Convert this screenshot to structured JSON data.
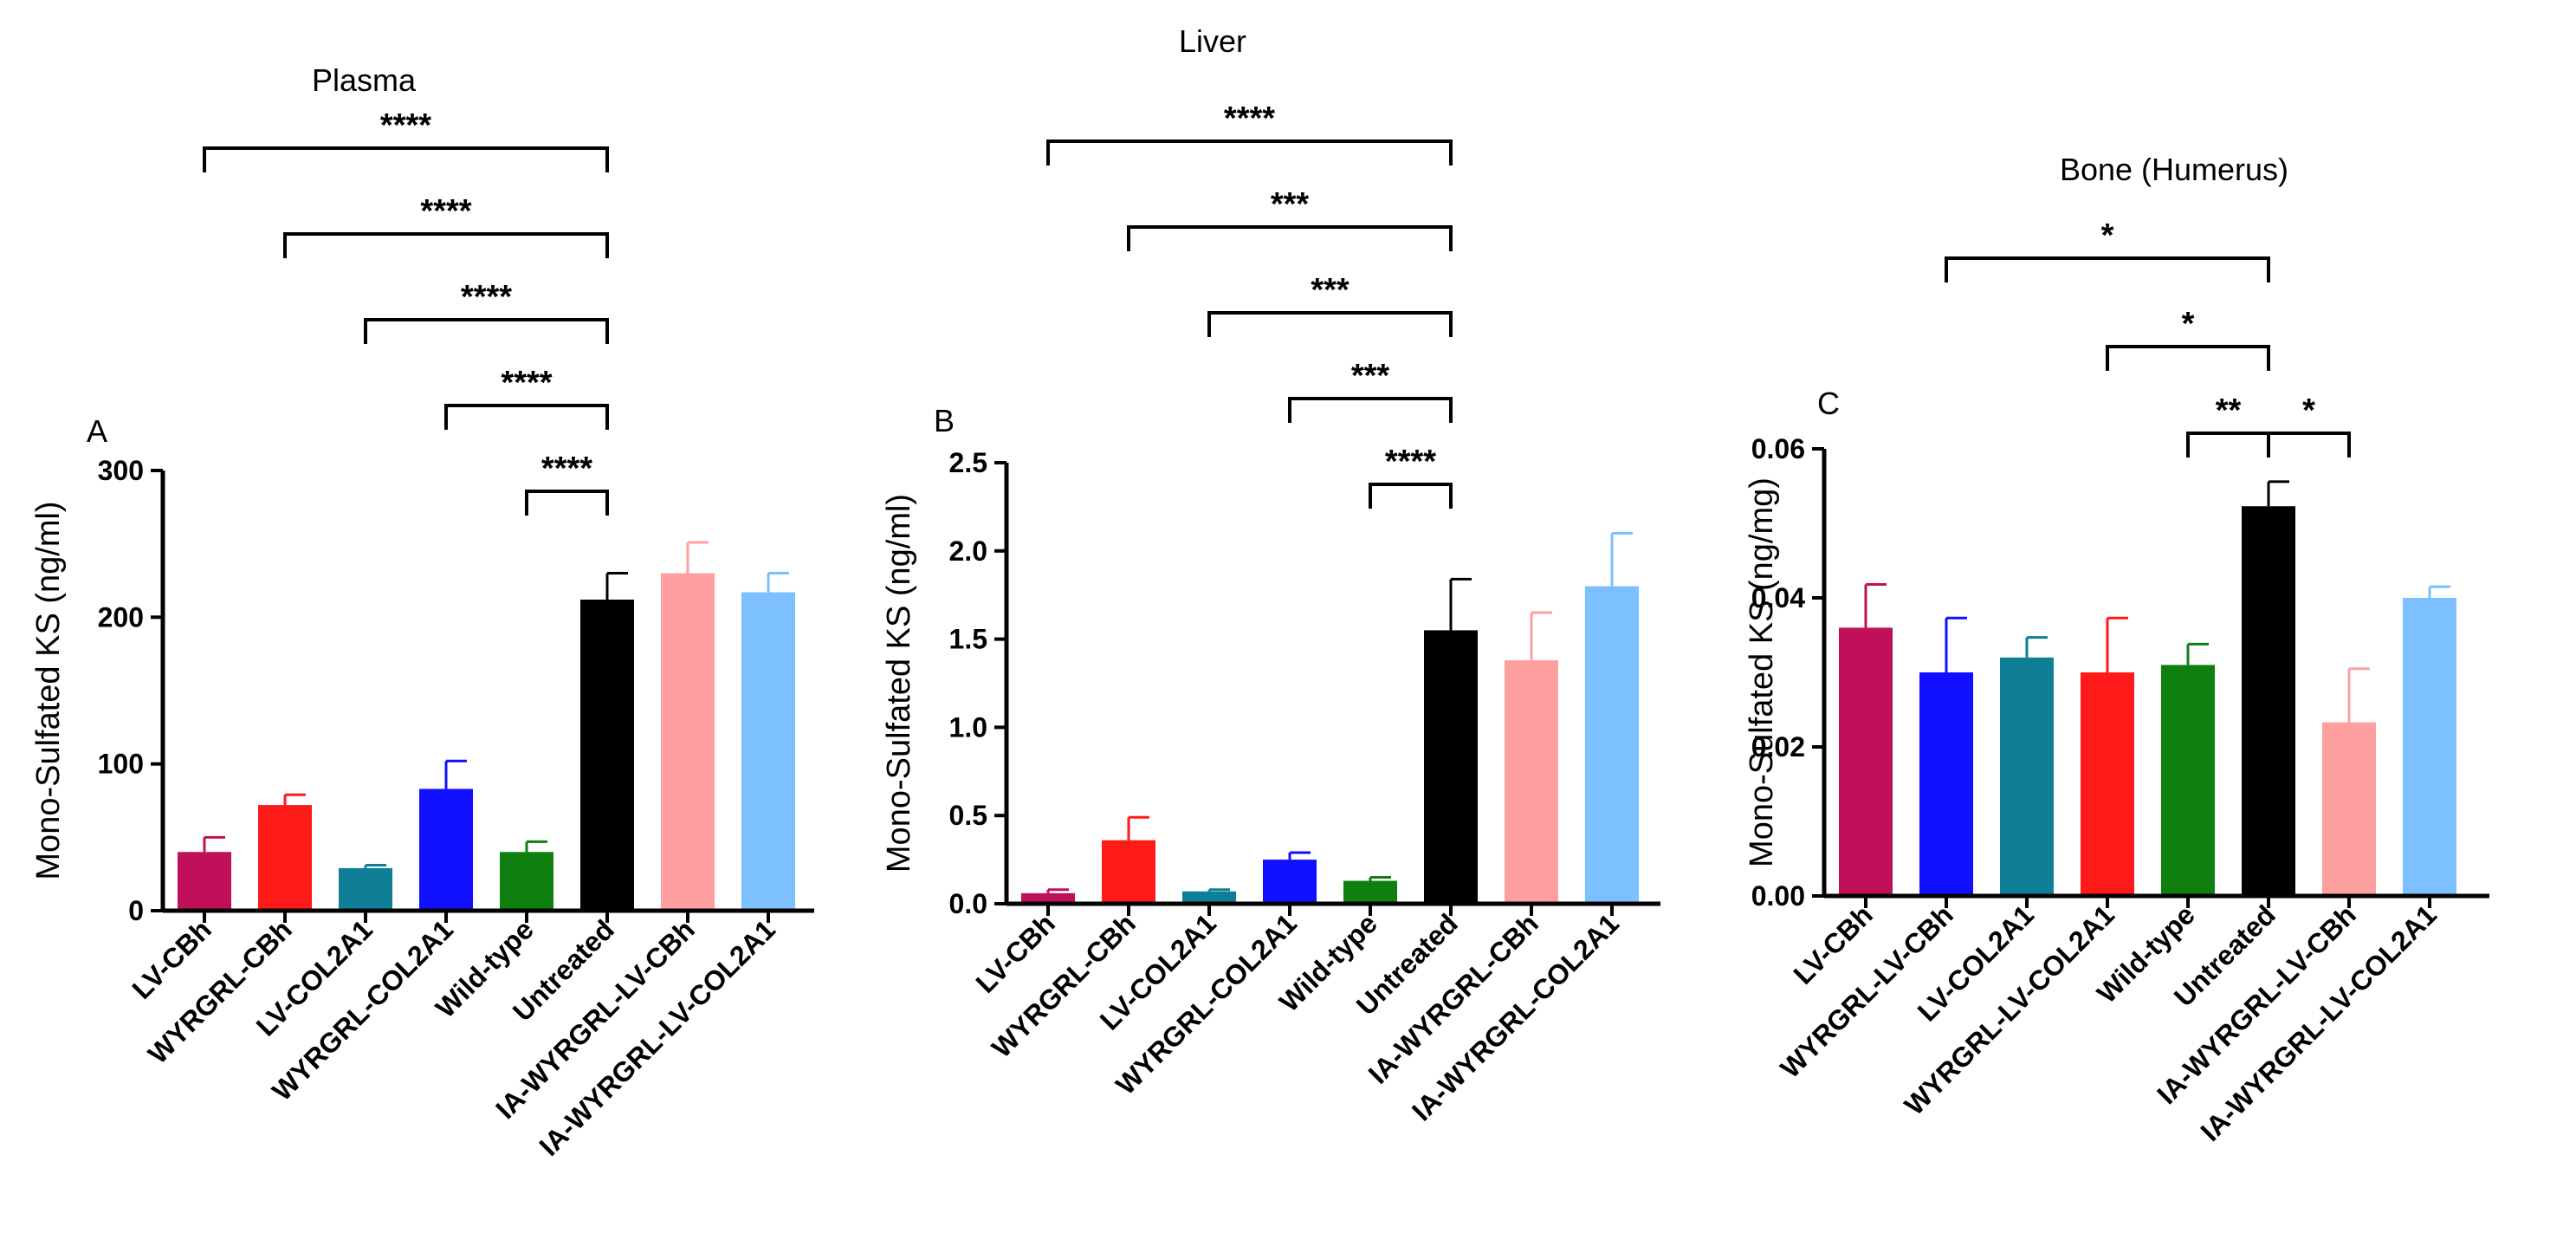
{
  "chart_data": [
    {
      "type": "bar",
      "panel_letter": "A",
      "title": "Plasma",
      "ylabel": "Mono-Sulfated KS (ng/ml)",
      "xlabel": "",
      "ylim": [
        0,
        300
      ],
      "yticks": [
        0,
        100,
        200,
        300
      ],
      "ytick_labels": [
        "0",
        "100",
        "200",
        "300"
      ],
      "categories": [
        "LV-CBh",
        "WYRGRL-CBh",
        "LV-COL2A1",
        "WYRGRL-COL2A1",
        "Wild-type",
        "Untreated",
        "IA-WYRGRL-LV-CBh",
        "IA-WYRGRL-LV-COL2A1"
      ],
      "values": [
        40,
        72,
        29,
        83,
        40,
        212,
        230,
        217
      ],
      "errors": [
        10,
        7,
        2,
        19,
        7,
        18,
        21,
        13
      ],
      "colors": [
        "#c0105a",
        "#ff1a1a",
        "#0e7f96",
        "#1010ff",
        "#0f800f",
        "#000000",
        "#ffa0a0",
        "#7cc0ff"
      ],
      "comparisons": [
        {
          "from": 0,
          "to": 5,
          "label": "****"
        },
        {
          "from": 1,
          "to": 5,
          "label": "****"
        },
        {
          "from": 2,
          "to": 5,
          "label": "****"
        },
        {
          "from": 3,
          "to": 5,
          "label": "****"
        },
        {
          "from": 4,
          "to": 5,
          "label": "****"
        }
      ]
    },
    {
      "type": "bar",
      "panel_letter": "B",
      "title": "Liver",
      "ylabel": "Mono-Sulfated KS (ng/ml)",
      "xlabel": "",
      "ylim": [
        0,
        2.5
      ],
      "yticks": [
        0,
        0.5,
        1.0,
        1.5,
        2.0,
        2.5
      ],
      "ytick_labels": [
        "0.0",
        "0.5",
        "1.0",
        "1.5",
        "2.0",
        "2.5"
      ],
      "categories": [
        "LV-CBh",
        "WYRGRL-CBh",
        "LV-COL2A1",
        "WYRGRL-COL2A1",
        "Wild-type",
        "Untreated",
        "IA-WYRGRL-CBh",
        "IA-WYRGRL-COL2A1"
      ],
      "values": [
        0.06,
        0.36,
        0.07,
        0.25,
        0.13,
        1.55,
        1.38,
        1.8
      ],
      "errors": [
        0.02,
        0.13,
        0.01,
        0.04,
        0.02,
        0.29,
        0.27,
        0.3
      ],
      "colors": [
        "#c0105a",
        "#ff1a1a",
        "#0e7f96",
        "#1010ff",
        "#0f800f",
        "#000000",
        "#ffa0a0",
        "#7cc0ff"
      ],
      "comparisons": [
        {
          "from": 0,
          "to": 5,
          "label": "****"
        },
        {
          "from": 1,
          "to": 5,
          "label": "***"
        },
        {
          "from": 2,
          "to": 5,
          "label": "***"
        },
        {
          "from": 3,
          "to": 5,
          "label": "***"
        },
        {
          "from": 4,
          "to": 5,
          "label": "****"
        }
      ]
    },
    {
      "type": "bar",
      "panel_letter": "C",
      "title": "Bone (Humerus)",
      "ylabel": "Mono-Sulfated KS (ng/mg)",
      "xlabel": "",
      "ylim": [
        0,
        0.06
      ],
      "yticks": [
        0,
        0.02,
        0.04,
        0.06
      ],
      "ytick_labels": [
        "0.00",
        "0.02",
        "0.04",
        "0.06"
      ],
      "categories": [
        "LV-CBh",
        "WYRGRL-LV-CBh",
        "LV-COL2A1",
        "WYRGRL-LV-COL2A1",
        "Wild-type",
        "Untreated",
        "IA-WYRGRL-LV-CBh",
        "IA-WYRGRL-LV-COL2A1"
      ],
      "values": [
        0.036,
        0.03,
        0.032,
        0.03,
        0.031,
        0.0523,
        0.0233,
        0.04
      ],
      "errors": [
        0.0058,
        0.0073,
        0.0027,
        0.0073,
        0.0028,
        0.0033,
        0.0072,
        0.0015
      ],
      "colors": [
        "#c0105a",
        "#1010ff",
        "#0e7f96",
        "#ff1a1a",
        "#0f800f",
        "#000000",
        "#ffa0a0",
        "#7cc0ff"
      ],
      "comparisons": [
        {
          "from": 1,
          "to": 5,
          "label": "*"
        },
        {
          "from": 3,
          "to": 5,
          "label": "*"
        },
        {
          "from": 4,
          "to": 5,
          "label": "**"
        },
        {
          "from": 5,
          "to": 6,
          "label": "*"
        }
      ]
    }
  ]
}
